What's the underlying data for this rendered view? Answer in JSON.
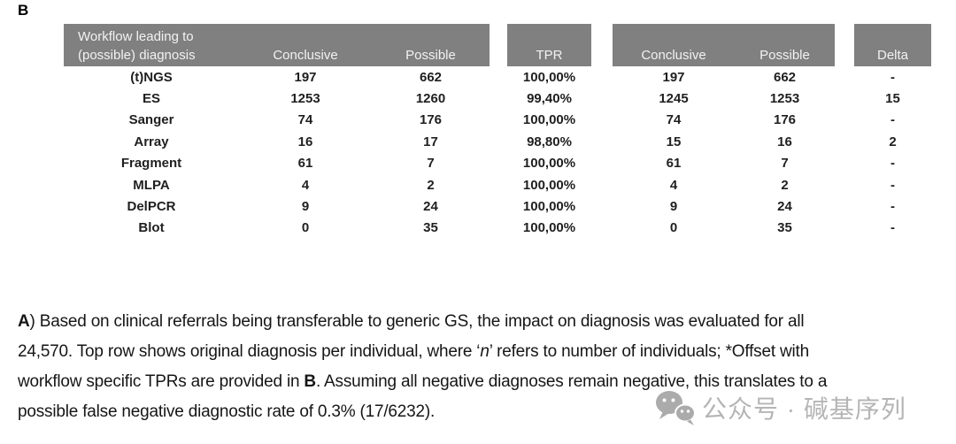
{
  "panel_label": "B",
  "table": {
    "header": {
      "workflow_line1": "Workflow leading to",
      "workflow_line2": "(possible) diagnosis",
      "conclusive_left": "Conclusive",
      "possible_left": "Possible",
      "tpr": "TPR",
      "conclusive_right": "Conclusive",
      "possible_right": "Possible",
      "delta": "Delta"
    },
    "rows": [
      [
        "(t)NGS",
        "197",
        "662",
        "100,00%",
        "197",
        "662",
        "-"
      ],
      [
        "ES",
        "1253",
        "1260",
        "99,40%",
        "1245",
        "1253",
        "15"
      ],
      [
        "Sanger",
        "74",
        "176",
        "100,00%",
        "74",
        "176",
        "-"
      ],
      [
        "Array",
        "16",
        "17",
        "98,80%",
        "15",
        "16",
        "2"
      ],
      [
        "Fragment",
        "61",
        "7",
        "100,00%",
        "61",
        "7",
        "-"
      ],
      [
        "MLPA",
        "4",
        "2",
        "100,00%",
        "4",
        "2",
        "-"
      ],
      [
        "DelPCR",
        "9",
        "24",
        "100,00%",
        "9",
        "24",
        "-"
      ],
      [
        "Blot",
        "0",
        "35",
        "100,00%",
        "0",
        "35",
        "-"
      ]
    ]
  },
  "caption": {
    "lines": [
      [
        {
          "t": "A",
          "b": true
        },
        {
          "t": ") Based on clinical referrals being transferable to generic GS, the impact on diagnosis was evaluated for all"
        }
      ],
      [
        {
          "t": "24,570. Top row shows original diagnosis per individual, where ‘"
        },
        {
          "t": "n",
          "i": true
        },
        {
          "t": "’ refers to number of individuals; *Offset with"
        }
      ],
      [
        {
          "t": "workflow specific TPRs are provided in "
        },
        {
          "t": "B",
          "b": true
        },
        {
          "t": ". Assuming all negative diagnoses remain negative, this translates to a"
        }
      ],
      [
        {
          "t": "possible false negative diagnostic rate of 0.3% (17/6232)."
        }
      ]
    ]
  },
  "watermark": {
    "icon": "wechat-icon",
    "text": "公众号 · 碱基序列"
  },
  "colors": {
    "header_bg": "#808080",
    "header_text": "#f2f2f2",
    "body_text": "#1f1f1f",
    "watermark": "#b5b5b5"
  }
}
